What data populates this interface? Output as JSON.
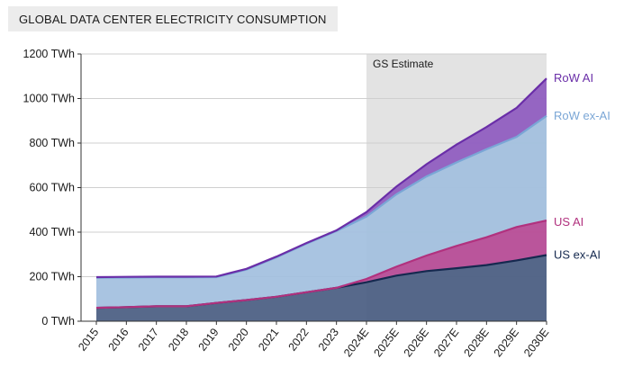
{
  "chart_data": {
    "type": "area",
    "title": "GLOBAL DATA CENTER ELECTRICITY CONSUMPTION",
    "x": [
      "2015",
      "2016",
      "2017",
      "2018",
      "2019",
      "2020",
      "2021",
      "2022",
      "2023",
      "2024E",
      "2025E",
      "2026E",
      "2027E",
      "2028E",
      "2029E",
      "2030E"
    ],
    "ylim": [
      0,
      1200
    ],
    "yticks": [
      0,
      200,
      400,
      600,
      800,
      1000,
      1200
    ],
    "ytick_labels": [
      "0 TWh",
      "200 TWh",
      "400 TWh",
      "600 TWh",
      "800 TWh",
      "1000 TWh",
      "1200 TWh"
    ],
    "stacking": "stacked",
    "series": [
      {
        "name": "US ex-AI",
        "color": "#15294f",
        "fill": "#4a5e82",
        "values": [
          60,
          63,
          67,
          67,
          82,
          95,
          110,
          130,
          150,
          175,
          205,
          225,
          238,
          252,
          273,
          297
        ]
      },
      {
        "name": "US AI",
        "color": "#b1317e",
        "fill": "#b74a96",
        "values": [
          0,
          0,
          0,
          0,
          0,
          0,
          0,
          0,
          0,
          15,
          40,
          70,
          100,
          125,
          150,
          155
        ]
      },
      {
        "name": "RoW ex-AI",
        "color": "#7aa6d6",
        "fill": "#a3bfdf",
        "values": [
          135,
          133,
          130,
          130,
          116,
          137,
          177,
          218,
          255,
          280,
          325,
          355,
          375,
          395,
          405,
          470
        ]
      },
      {
        "name": "RoW AI",
        "color": "#6a2ea8",
        "fill": "#8f5bbf",
        "values": [
          3,
          3,
          3,
          3,
          3,
          3,
          3,
          3,
          3,
          20,
          35,
          55,
          80,
          100,
          130,
          168
        ]
      }
    ],
    "estimate_region": {
      "label": "GS Estimate",
      "from": "2024E",
      "to": "2030E"
    },
    "grid": true,
    "legend": "right-inline labels"
  }
}
